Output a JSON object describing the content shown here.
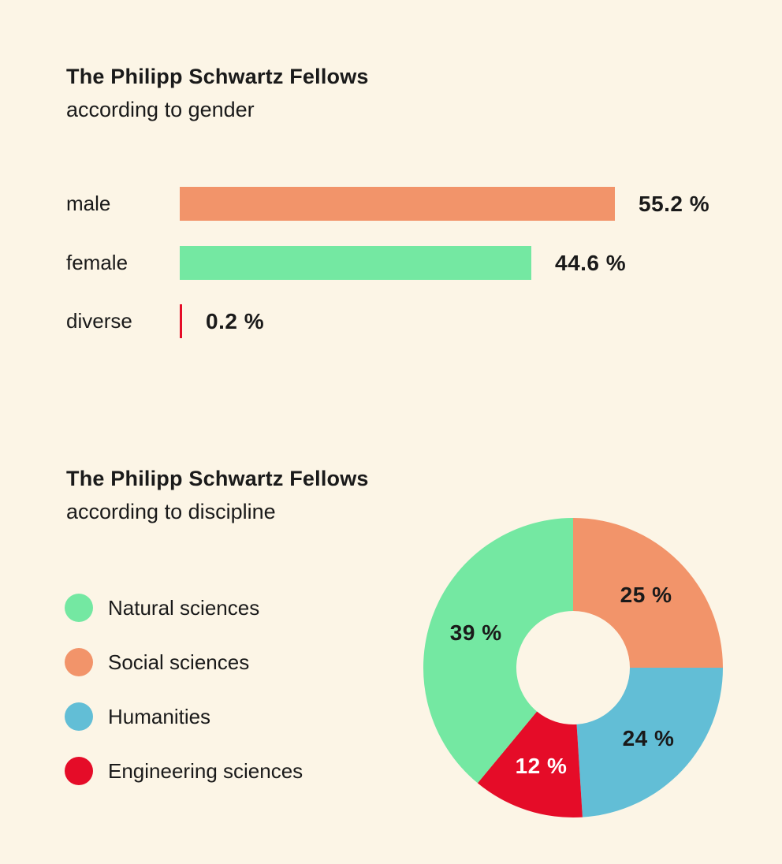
{
  "page": {
    "background": "#FCF5E6",
    "text_color": "#1A1A1A"
  },
  "chart_data": [
    {
      "type": "bar",
      "orientation": "horizontal",
      "title": "The Philipp Schwartz Fellows",
      "subtitle": "according to gender",
      "categories": [
        "male",
        "female",
        "diverse"
      ],
      "values": [
        55.2,
        44.6,
        0.2
      ],
      "value_labels": [
        "55.2 %",
        "44.6 %",
        "0.2 %"
      ],
      "colors": [
        "#F2946A",
        "#74E8A2",
        "#E50C28"
      ],
      "grid": false,
      "axis_visible": false,
      "value_label_position": "right-of-bar"
    },
    {
      "type": "pie",
      "donut": true,
      "title": "The Philipp Schwartz Fellows",
      "subtitle": "according to discipline",
      "categories": [
        "Natural sciences",
        "Social sciences",
        "Humanities",
        "Engineering sciences"
      ],
      "values": [
        39,
        25,
        24,
        12
      ],
      "value_labels": [
        "39 %",
        "25 %",
        "24 %",
        "12 %"
      ],
      "colors": [
        "#74E8A2",
        "#F2946A",
        "#62BED6",
        "#E50C28"
      ],
      "legend_position": "left",
      "start_angle_deg_from_top": 0,
      "direction": "clockwise",
      "slices_clockwise_from_top": [
        {
          "category": "Social sciences",
          "value": 25,
          "label": "25 %",
          "color": "#F2946A",
          "label_color": "#1A1A1A"
        },
        {
          "category": "Humanities",
          "value": 24,
          "label": "24 %",
          "color": "#62BED6",
          "label_color": "#1A1A1A"
        },
        {
          "category": "Engineering sciences",
          "value": 12,
          "label": "12 %",
          "color": "#E50C28",
          "label_color": "#FFFFFF"
        },
        {
          "category": "Natural sciences",
          "value": 39,
          "label": "39 %",
          "color": "#74E8A2",
          "label_color": "#1A1A1A"
        }
      ],
      "hole_color": "#FCF5E6"
    }
  ]
}
